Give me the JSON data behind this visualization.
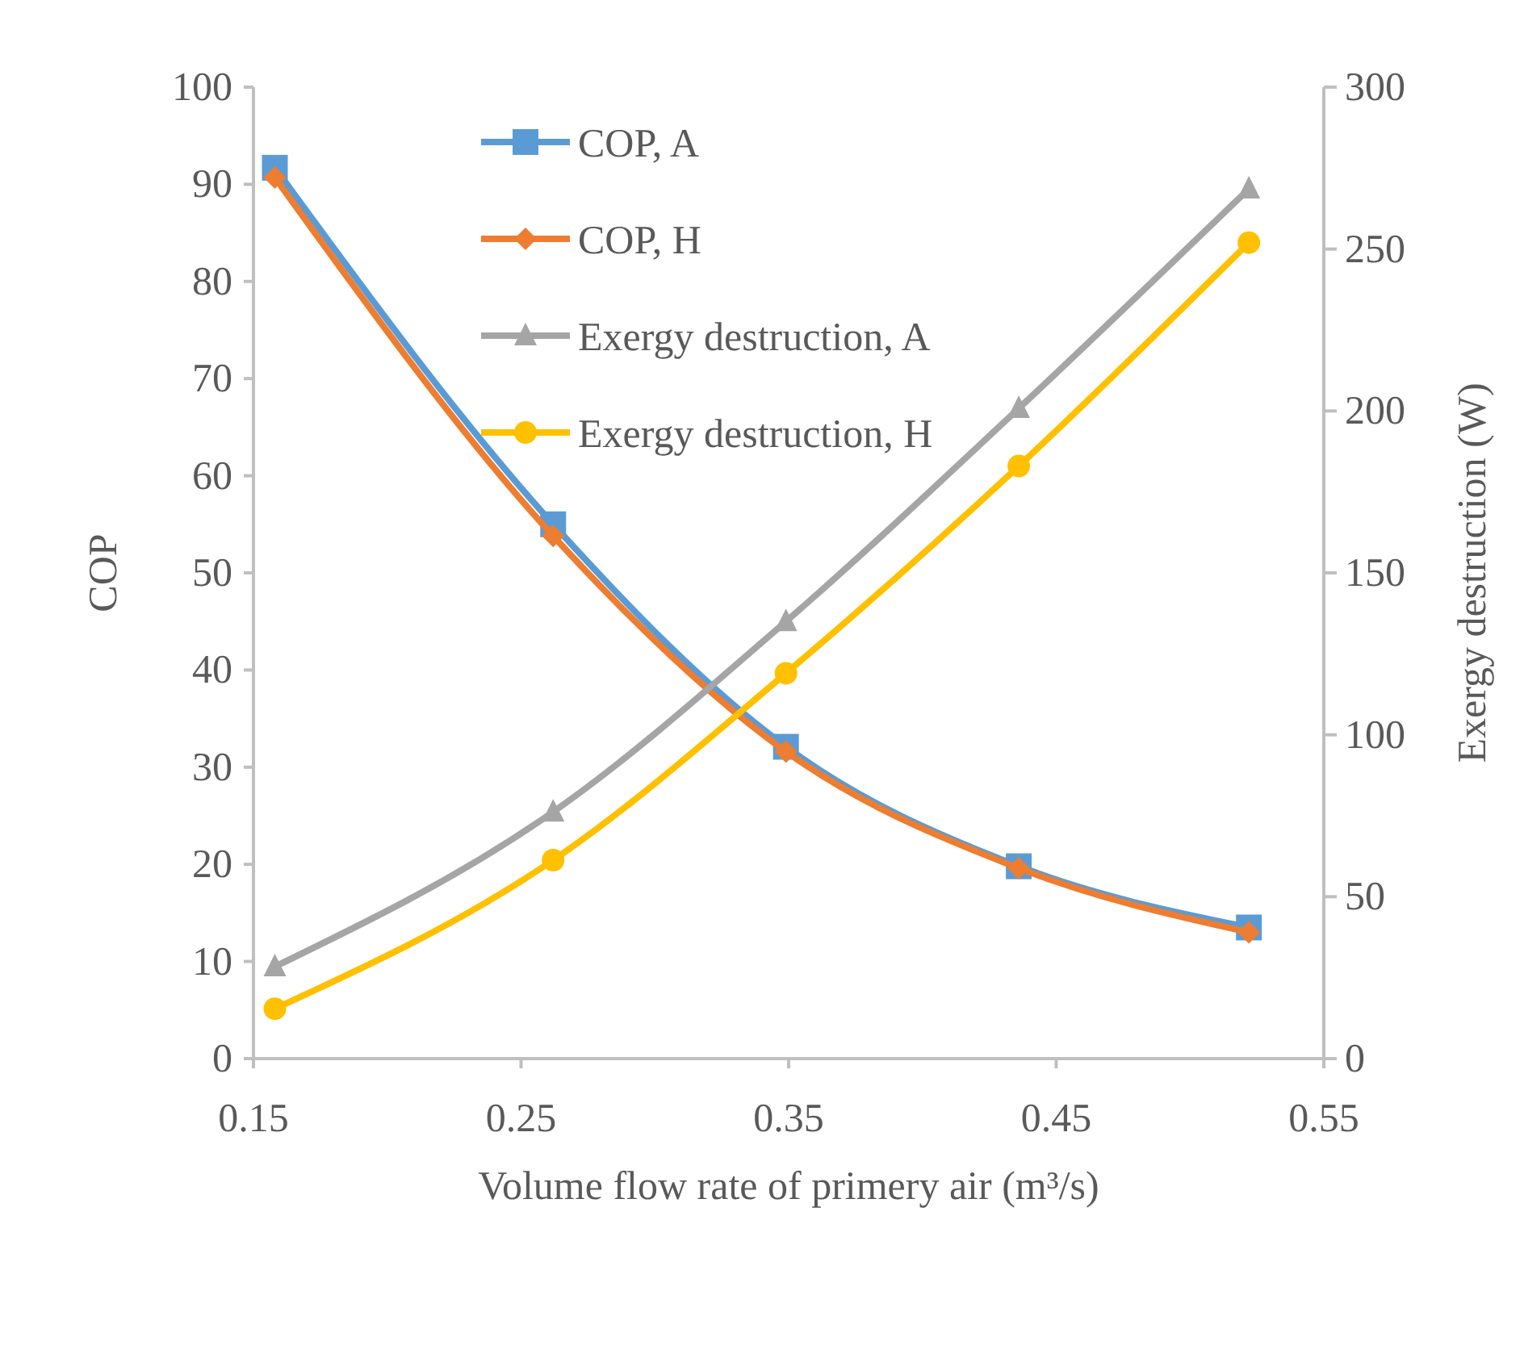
{
  "chart_data": {
    "type": "line",
    "xlabel": "Volume flow rate of primery air (m³/s)",
    "ylabel": "COP",
    "y2label": "Exergy destruction (W)",
    "x": [
      0.158,
      0.262,
      0.349,
      0.436,
      0.522
    ],
    "xlim": [
      0.15,
      0.55
    ],
    "xticks": [
      0.15,
      0.25,
      0.35,
      0.45,
      0.55
    ],
    "ylim": [
      0,
      100
    ],
    "yticks": [
      0,
      10,
      20,
      30,
      40,
      50,
      60,
      70,
      80,
      90,
      100
    ],
    "y2lim": [
      0,
      300
    ],
    "y2ticks": [
      0,
      50,
      100,
      150,
      200,
      250,
      300
    ],
    "grid": false,
    "legend": "top left",
    "series": [
      {
        "name": "COP, A",
        "color": "#5b9bd5",
        "marker": "square",
        "values": [
          91.7,
          55.0,
          32.1,
          19.8,
          13.5
        ]
      },
      {
        "name": "COP, H",
        "color": "#ed7d31",
        "marker": "diamond",
        "values": [
          90.7,
          53.8,
          31.6,
          19.6,
          13.0
        ]
      },
      {
        "name": "Exergy destruction, A",
        "color": "#a5a5a5",
        "marker": "triangle",
        "axis": "y2",
        "values": [
          28.4,
          76.2,
          135,
          200.8,
          268.6
        ]
      },
      {
        "name": "Exergy destruction, H",
        "color": "#ffc000",
        "marker": "circle",
        "axis": "y2",
        "values": [
          15.4,
          61.3,
          119,
          183,
          252
        ]
      }
    ]
  }
}
